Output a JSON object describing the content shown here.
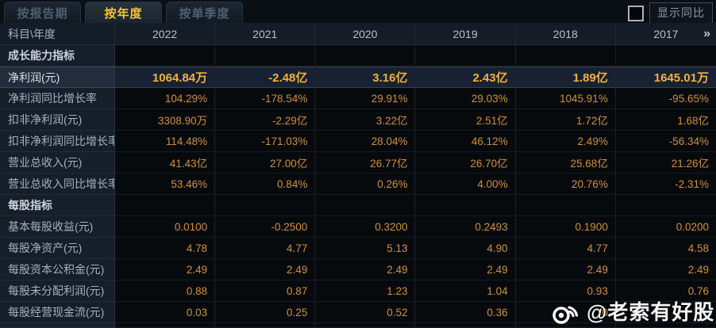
{
  "tabs": [
    {
      "label": "按报告期",
      "active": false
    },
    {
      "label": "按年度",
      "active": true
    },
    {
      "label": "按单季度",
      "active": false
    }
  ],
  "controls": {
    "show_yoy_checked": false,
    "show_yoy_label": "显示同比"
  },
  "table": {
    "corner_label": "科目\\年度",
    "years": [
      "2022",
      "2021",
      "2020",
      "2019",
      "2018",
      "2017"
    ],
    "more_label": "»",
    "rows": [
      {
        "type": "section",
        "label": "成长能力指标"
      },
      {
        "type": "data",
        "highlight": true,
        "label": "净利润(元)",
        "values": [
          "1064.84万",
          "-2.48亿",
          "3.16亿",
          "2.43亿",
          "1.89亿",
          "1645.01万"
        ]
      },
      {
        "type": "data",
        "highlight": false,
        "label": "净利润同比增长率",
        "values": [
          "104.29%",
          "-178.54%",
          "29.91%",
          "29.03%",
          "1045.91%",
          "-95.65%"
        ]
      },
      {
        "type": "data",
        "highlight": false,
        "label": "扣非净利润(元)",
        "values": [
          "3308.90万",
          "-2.29亿",
          "3.22亿",
          "2.51亿",
          "1.72亿",
          "1.68亿"
        ]
      },
      {
        "type": "data",
        "highlight": false,
        "label": "扣非净利润同比增长率",
        "values": [
          "114.48%",
          "-171.03%",
          "28.04%",
          "46.12%",
          "2.49%",
          "-56.34%"
        ]
      },
      {
        "type": "data",
        "highlight": false,
        "label": "营业总收入(元)",
        "values": [
          "41.43亿",
          "27.00亿",
          "26.77亿",
          "26.70亿",
          "25.68亿",
          "21.26亿"
        ]
      },
      {
        "type": "data",
        "highlight": false,
        "label": "营业总收入同比增长率",
        "values": [
          "53.46%",
          "0.84%",
          "0.26%",
          "4.00%",
          "20.76%",
          "-2.31%"
        ]
      },
      {
        "type": "section",
        "label": "每股指标"
      },
      {
        "type": "data",
        "highlight": false,
        "label": "基本每股收益(元)",
        "values": [
          "0.0100",
          "-0.2500",
          "0.3200",
          "0.2493",
          "0.1900",
          "0.0200"
        ]
      },
      {
        "type": "data",
        "highlight": false,
        "label": "每股净资产(元)",
        "values": [
          "4.78",
          "4.77",
          "5.13",
          "4.90",
          "4.77",
          "4.58"
        ]
      },
      {
        "type": "data",
        "highlight": false,
        "label": "每股资本公积金(元)",
        "values": [
          "2.49",
          "2.49",
          "2.49",
          "2.49",
          "2.49",
          "2.49"
        ]
      },
      {
        "type": "data",
        "highlight": false,
        "label": "每股未分配利润(元)",
        "values": [
          "0.88",
          "0.87",
          "1.23",
          "1.04",
          "0.93",
          "0.76"
        ]
      },
      {
        "type": "data",
        "highlight": false,
        "label": "每股经营现金流(元)",
        "values": [
          "0.03",
          "0.25",
          "0.52",
          "0.36",
          "0",
          ""
        ]
      }
    ]
  },
  "watermark": {
    "icon": "weibo-icon",
    "text": "@老索有好股"
  },
  "colors": {
    "value_orange": "#cf8f3f",
    "highlight_value_gold": "#f2b13c",
    "active_tab_text": "#f5c633",
    "watermark_white": "#ffffff"
  }
}
